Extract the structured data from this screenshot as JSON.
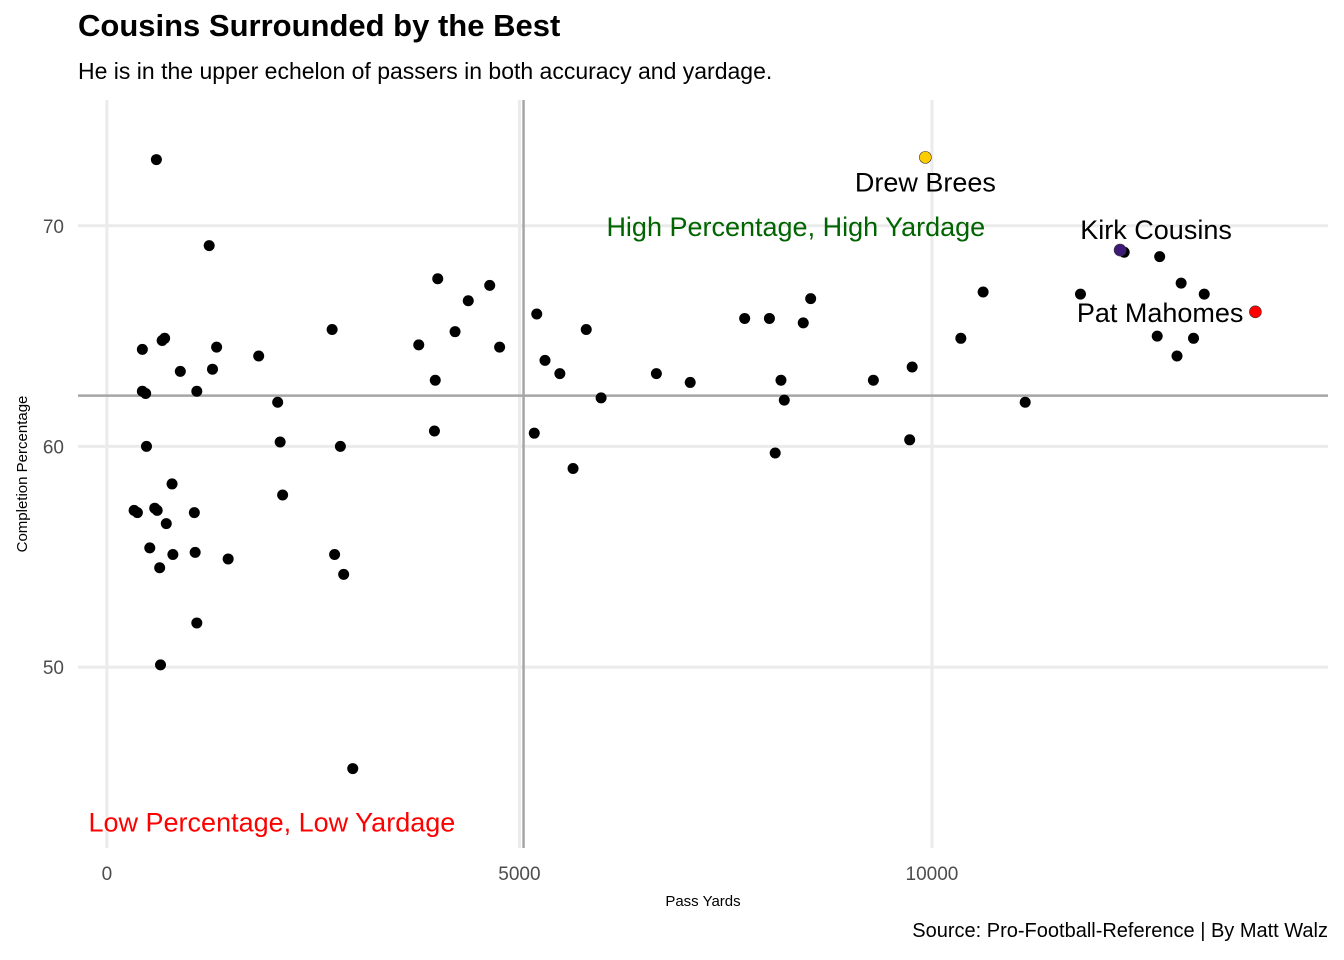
{
  "title": "Cousins Surrounded by the Best",
  "subtitle": "He is in the upper echelon of passers in both accuracy and yardage.",
  "caption": "Source: Pro-Football-Reference | By Matt Walz",
  "chart_data": {
    "type": "scatter",
    "xlabel": "Pass Yards",
    "ylabel": "Completion Percentage",
    "xlim": [
      -350,
      14800
    ],
    "ylim": [
      41.8,
      75.7
    ],
    "xticks": [
      0,
      5000,
      10000
    ],
    "xtick_labels": [
      "0",
      "5000",
      "10000"
    ],
    "yticks": [
      50,
      60,
      70
    ],
    "ytick_labels": [
      "50",
      "60",
      "70"
    ],
    "grid": true,
    "reference_lines": {
      "vline_x": 5050,
      "hline_y": 62.3
    },
    "point_color": "#000000",
    "points": [
      [
        600,
        73.0
      ],
      [
        1240,
        69.1
      ],
      [
        700,
        64.9
      ],
      [
        670,
        64.8
      ],
      [
        430,
        64.4
      ],
      [
        1330,
        64.5
      ],
      [
        1840,
        64.1
      ],
      [
        890,
        63.4
      ],
      [
        1280,
        63.5
      ],
      [
        430,
        62.5
      ],
      [
        470,
        62.4
      ],
      [
        1090,
        62.5
      ],
      [
        2070,
        62.0
      ],
      [
        2100,
        60.2
      ],
      [
        480,
        60.0
      ],
      [
        790,
        58.3
      ],
      [
        2130,
        57.8
      ],
      [
        330,
        57.1
      ],
      [
        370,
        57.0
      ],
      [
        580,
        57.2
      ],
      [
        610,
        57.1
      ],
      [
        1060,
        57.0
      ],
      [
        720,
        56.5
      ],
      [
        520,
        55.4
      ],
      [
        800,
        55.1
      ],
      [
        1070,
        55.2
      ],
      [
        1470,
        54.9
      ],
      [
        640,
        54.5
      ],
      [
        1090,
        52.0
      ],
      [
        650,
        50.1
      ],
      [
        2730,
        65.3
      ],
      [
        2830,
        60.0
      ],
      [
        2760,
        55.1
      ],
      [
        2870,
        54.2
      ],
      [
        2980,
        45.4
      ],
      [
        3780,
        64.6
      ],
      [
        4010,
        67.6
      ],
      [
        3980,
        63.0
      ],
      [
        3970,
        60.7
      ],
      [
        4220,
        65.2
      ],
      [
        4380,
        66.6
      ],
      [
        4640,
        67.3
      ],
      [
        4760,
        64.5
      ],
      [
        5210,
        66.0
      ],
      [
        5310,
        63.9
      ],
      [
        5490,
        63.3
      ],
      [
        5180,
        60.6
      ],
      [
        5650,
        59.0
      ],
      [
        5810,
        65.3
      ],
      [
        5990,
        62.2
      ],
      [
        6660,
        63.3
      ],
      [
        7070,
        62.9
      ],
      [
        7730,
        65.8
      ],
      [
        8030,
        65.8
      ],
      [
        8530,
        66.7
      ],
      [
        8440,
        65.6
      ],
      [
        8170,
        63.0
      ],
      [
        8210,
        62.1
      ],
      [
        8100,
        59.7
      ],
      [
        9290,
        63.0
      ],
      [
        9760,
        63.6
      ],
      [
        9730,
        60.3
      ],
      [
        10620,
        67.0
      ],
      [
        10350,
        64.9
      ],
      [
        11130,
        62.0
      ],
      [
        11800,
        66.9
      ],
      [
        12330,
        68.8
      ],
      [
        12760,
        68.6
      ],
      [
        13020,
        67.4
      ],
      [
        13300,
        66.9
      ],
      [
        12730,
        65.0
      ],
      [
        13170,
        64.9
      ],
      [
        12970,
        64.1
      ]
    ],
    "highlights": [
      {
        "name": "Drew Brees",
        "x": 9920,
        "y": 73.1,
        "color": "#ffcc00",
        "label_anchor": "below"
      },
      {
        "name": "Kirk Cousins",
        "x": 12280,
        "y": 68.9,
        "color": "#3d1a78",
        "label_anchor": "above"
      },
      {
        "name": "Pat Mahomes",
        "x": 13920,
        "y": 66.1,
        "color": "#ff0000",
        "label_anchor": "left"
      }
    ],
    "annotations": [
      {
        "text": "High Percentage, High Yardage",
        "color": "#006400",
        "x": 8350,
        "y": 70.0
      },
      {
        "text": "Low Percentage, Low Yardage",
        "color": "#ff0000",
        "x": 2000,
        "y": 43.0
      }
    ]
  }
}
